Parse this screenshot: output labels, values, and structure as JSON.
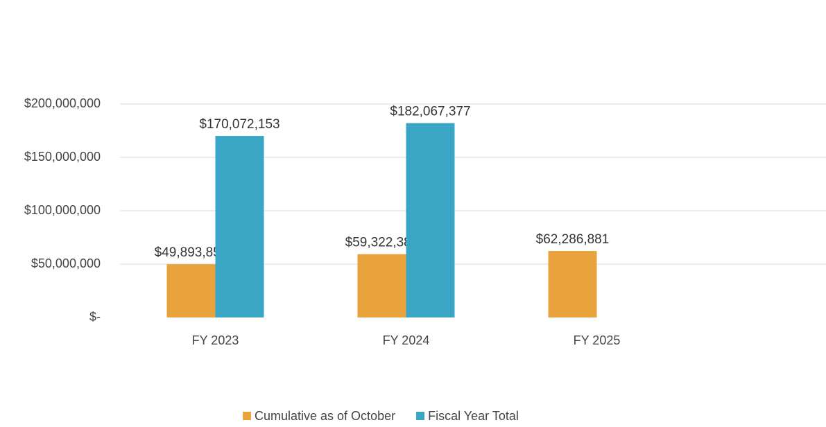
{
  "chart_data": {
    "type": "bar",
    "categories": [
      "FY 2023",
      "FY 2024",
      "FY 2025"
    ],
    "series": [
      {
        "name": "Cumulative as of October",
        "color": "#e8a33d",
        "values": [
          49893854,
          59322387,
          62286881
        ],
        "value_labels": [
          "$49,893,854",
          "$59,322,387",
          "$62,286,881"
        ]
      },
      {
        "name": "Fiscal Year Total",
        "color": "#3aa5c4",
        "values": [
          170072153,
          182067377,
          null
        ],
        "value_labels": [
          "$170,072,153",
          "$182,067,377",
          null
        ]
      }
    ],
    "ylim": [
      0,
      250000000
    ],
    "yticks": [
      {
        "value": 0,
        "label": "$-"
      },
      {
        "value": 50000000,
        "label": "$50,000,000"
      },
      {
        "value": 100000000,
        "label": "$100,000,000"
      },
      {
        "value": 150000000,
        "label": "$150,000,000"
      },
      {
        "value": 200000000,
        "label": "$200,000,000"
      }
    ],
    "grid": true,
    "legend": "bottom"
  }
}
